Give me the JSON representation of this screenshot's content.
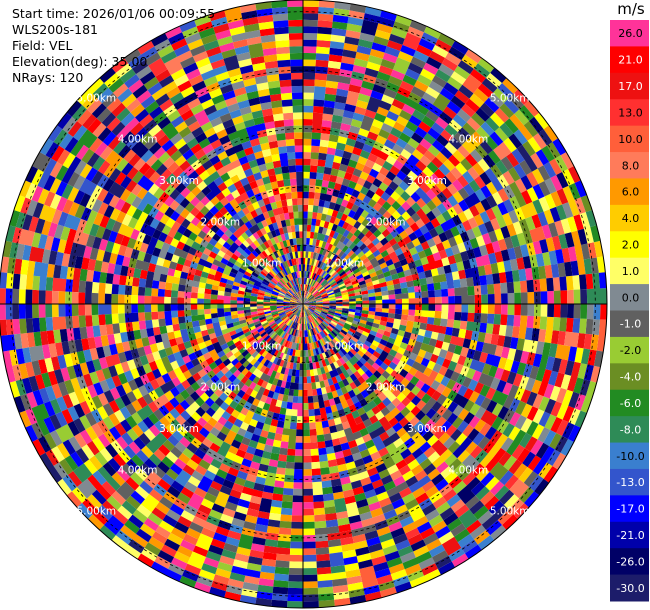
{
  "info": {
    "start_time": "Start time: 2026/01/06 00:09:55",
    "instrument": "WLS200s-181",
    "field": "Field: VEL",
    "elevation": "Elevation(deg): 35.00",
    "nrays": "NRays: 120"
  },
  "colorbar": {
    "unit": "m/s",
    "levels": [
      {
        "label": "26.0",
        "color": "#ff3399"
      },
      {
        "label": "21.0",
        "color": "#ff0000"
      },
      {
        "label": "17.0",
        "color": "#ee1111"
      },
      {
        "label": "13.0",
        "color": "#ff3030"
      },
      {
        "label": "10.0",
        "color": "#ff5f3a"
      },
      {
        "label": "8.0",
        "color": "#ff7b5a"
      },
      {
        "label": "6.0",
        "color": "#ff9900"
      },
      {
        "label": "4.0",
        "color": "#ffcc00"
      },
      {
        "label": "2.0",
        "color": "#ffff00"
      },
      {
        "label": "1.0",
        "color": "#ffff66"
      },
      {
        "label": "0.0",
        "color": "#808a92"
      },
      {
        "label": "-1.0",
        "color": "#606060"
      },
      {
        "label": "-2.0",
        "color": "#99cc33"
      },
      {
        "label": "-4.0",
        "color": "#6b8e23"
      },
      {
        "label": "-6.0",
        "color": "#228b22"
      },
      {
        "label": "-8.0",
        "color": "#2e8b57"
      },
      {
        "label": "-10.0",
        "color": "#3a7fcf"
      },
      {
        "label": "-13.0",
        "color": "#3355cc"
      },
      {
        "label": "-17.0",
        "color": "#0000ff"
      },
      {
        "label": "-21.0",
        "color": "#0000aa"
      },
      {
        "label": "-26.0",
        "color": "#000066"
      },
      {
        "label": "-30.0",
        "color": "#1c1c6a"
      }
    ]
  },
  "chart_data": {
    "type": "ppi",
    "field": "VEL",
    "units": "m/s",
    "elevation_deg": 35.0,
    "n_rays": 120,
    "range_rings_km": [
      1,
      2,
      3,
      4,
      5
    ],
    "ring_labels": [
      "1.00km",
      "2.00km",
      "3.00km",
      "4.00km",
      "5.00km"
    ],
    "max_range_km": 5.2,
    "velocity_range": [
      -30,
      26
    ],
    "grid": true
  }
}
